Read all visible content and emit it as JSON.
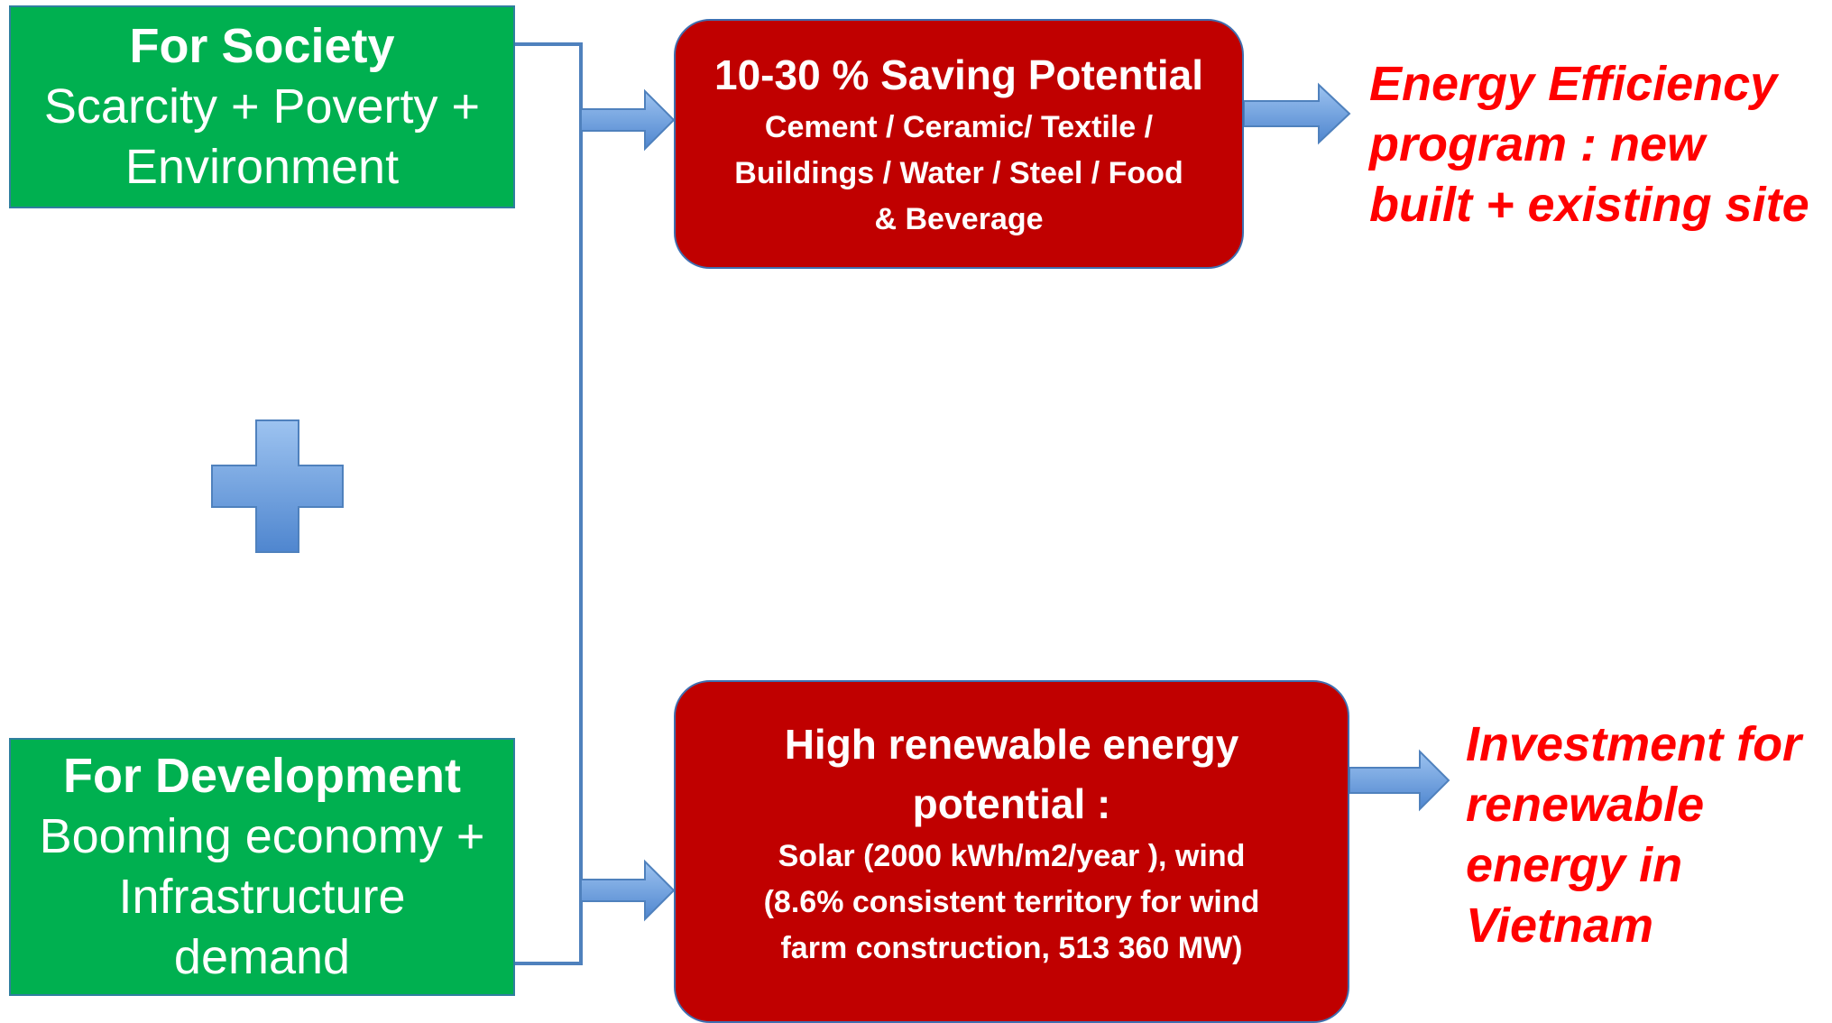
{
  "nodes": [
    {
      "title": "For Society",
      "lines": [
        "Scarcity + Poverty +",
        "Environment"
      ]
    },
    {
      "title": "For Development",
      "lines": [
        "Booming economy +",
        "Infrastructure",
        "demand"
      ]
    },
    {
      "title": "10-30 % Saving Potential",
      "lines": [
        "Cement / Ceramic/ Textile /",
        "Buildings / Water / Steel / Food",
        "& Beverage"
      ]
    },
    {
      "title": "High renewable energy",
      "title2": "potential  :",
      "lines": [
        "Solar (2000 kWh/m2/year ), wind",
        "(8.6% consistent territory for wind",
        "farm construction, 513 360 MW)"
      ]
    }
  ],
  "outcomes": [
    {
      "lines": [
        "Energy Efficiency",
        "program : new",
        "built + existing site"
      ]
    },
    {
      "lines": [
        "Investment for",
        "renewable",
        "energy in",
        "Vietnam"
      ]
    }
  ]
}
